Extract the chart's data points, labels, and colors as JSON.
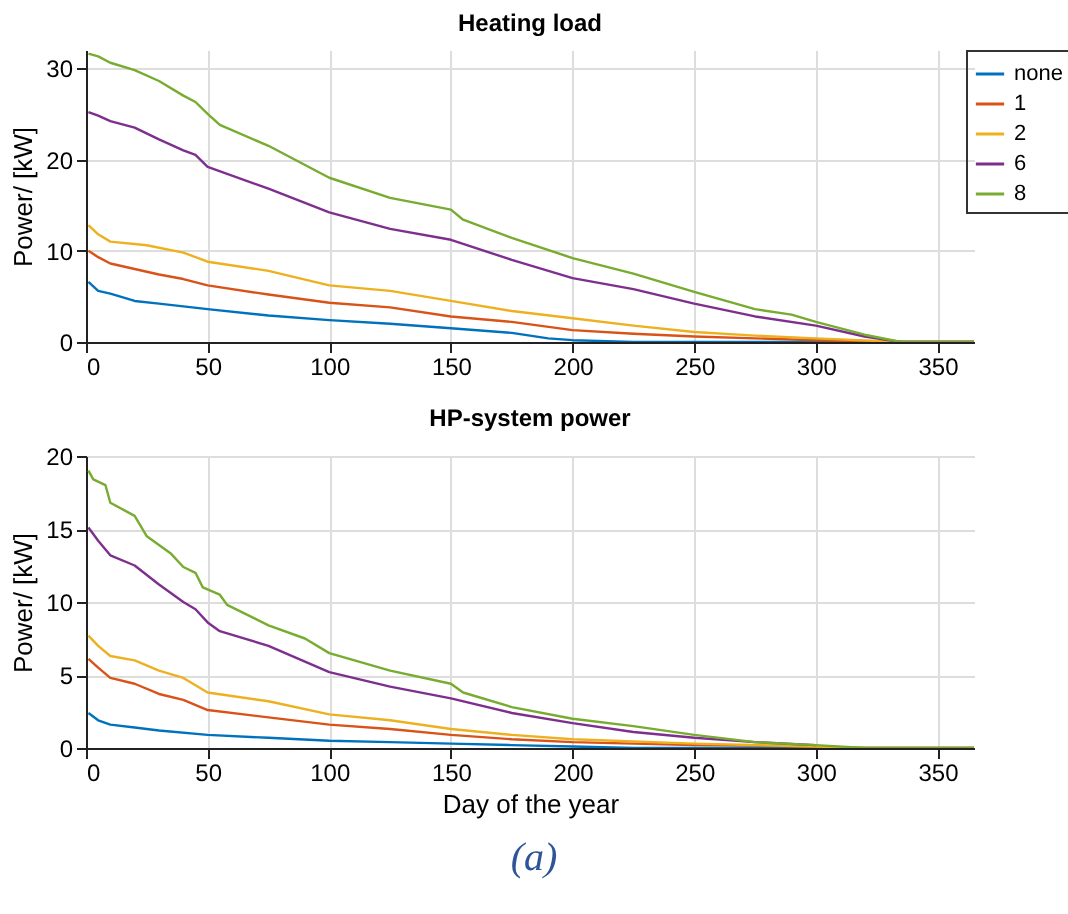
{
  "chart_data": [
    {
      "type": "line",
      "title": "Heating load",
      "ylabel": "Power/ [kW]",
      "xlim": [
        0,
        365
      ],
      "xticks": [
        0,
        50,
        100,
        150,
        200,
        250,
        300,
        350
      ],
      "ylim": [
        0,
        32
      ],
      "yticks": [
        0,
        10,
        20,
        30
      ],
      "grid": true,
      "legend": "right",
      "series": [
        {
          "name": "none",
          "color": "#0072bd",
          "x": [
            1,
            5,
            10,
            20,
            30,
            50,
            75,
            100,
            125,
            150,
            175,
            190,
            200,
            225,
            365
          ],
          "values": [
            6.6,
            5.6,
            5.3,
            4.5,
            4.2,
            3.6,
            2.9,
            2.4,
            2,
            1.5,
            1,
            0.4,
            0.2,
            0,
            0
          ]
        },
        {
          "name": "1",
          "color": "#d95319",
          "x": [
            1,
            5,
            10,
            20,
            30,
            40,
            50,
            75,
            100,
            125,
            150,
            175,
            200,
            225,
            250,
            275,
            300,
            335,
            365
          ],
          "values": [
            10,
            9.3,
            8.6,
            8,
            7.4,
            6.9,
            6.2,
            5.2,
            4.3,
            3.8,
            2.8,
            2.2,
            1.3,
            0.9,
            0.6,
            0.4,
            0.2,
            0,
            0
          ]
        },
        {
          "name": "2",
          "color": "#edb120",
          "x": [
            1,
            5,
            10,
            25,
            40,
            50,
            75,
            100,
            125,
            150,
            175,
            200,
            225,
            250,
            275,
            300,
            335,
            365
          ],
          "values": [
            12.8,
            11.8,
            11,
            10.6,
            9.8,
            8.8,
            7.8,
            6.2,
            5.6,
            4.5,
            3.4,
            2.6,
            1.8,
            1.1,
            0.7,
            0.4,
            0,
            0
          ]
        },
        {
          "name": "6",
          "color": "#7e2f8e",
          "x": [
            1,
            5,
            10,
            20,
            30,
            40,
            45,
            50,
            75,
            100,
            125,
            150,
            175,
            200,
            225,
            250,
            275,
            300,
            320,
            335,
            365
          ],
          "values": [
            25.2,
            24.8,
            24.2,
            23.5,
            22.2,
            21,
            20.5,
            19.2,
            16.8,
            14.2,
            12.4,
            11.2,
            9,
            7,
            5.8,
            4.2,
            2.8,
            1.8,
            0.6,
            0,
            0
          ]
        },
        {
          "name": "8",
          "color": "#77ac30",
          "x": [
            1,
            5,
            10,
            20,
            30,
            40,
            45,
            50,
            55,
            75,
            100,
            125,
            150,
            155,
            175,
            200,
            225,
            250,
            275,
            290,
            300,
            320,
            335,
            365
          ],
          "values": [
            31.6,
            31.3,
            30.6,
            29.8,
            28.6,
            27,
            26.3,
            25,
            23.8,
            21.5,
            18,
            15.8,
            14.5,
            13.4,
            11.4,
            9.2,
            7.5,
            5.5,
            3.6,
            3,
            2.2,
            0.8,
            0,
            0
          ]
        }
      ]
    },
    {
      "type": "line",
      "title": "HP-system power",
      "xlabel": "Day of the year",
      "ylabel": "Power/ [kW]",
      "xlim": [
        0,
        365
      ],
      "xticks": [
        0,
        50,
        100,
        150,
        200,
        250,
        300,
        350
      ],
      "ylim": [
        0,
        20
      ],
      "yticks": [
        0,
        5,
        10,
        15,
        20
      ],
      "grid": true,
      "annotations": [
        "(a)"
      ],
      "series": [
        {
          "color": "#0072bd",
          "x": [
            1,
            5,
            10,
            20,
            30,
            50,
            75,
            100,
            125,
            150,
            175,
            200,
            225,
            365
          ],
          "values": [
            2.4,
            1.9,
            1.6,
            1.4,
            1.2,
            0.9,
            0.7,
            0.5,
            0.4,
            0.3,
            0.2,
            0.1,
            0,
            0
          ]
        },
        {
          "color": "#d95319",
          "x": [
            1,
            5,
            10,
            20,
            30,
            40,
            50,
            75,
            100,
            125,
            150,
            175,
            200,
            250,
            300,
            320,
            365
          ],
          "values": [
            6.1,
            5.5,
            4.8,
            4.4,
            3.7,
            3.3,
            2.6,
            2.1,
            1.6,
            1.3,
            0.9,
            0.6,
            0.4,
            0.2,
            0.1,
            0,
            0
          ]
        },
        {
          "color": "#edb120",
          "x": [
            1,
            5,
            10,
            20,
            30,
            40,
            50,
            75,
            100,
            125,
            150,
            175,
            200,
            250,
            300,
            320,
            365
          ],
          "values": [
            7.7,
            7,
            6.3,
            6,
            5.3,
            4.8,
            3.8,
            3.2,
            2.3,
            1.9,
            1.3,
            0.9,
            0.6,
            0.3,
            0.1,
            0,
            0
          ]
        },
        {
          "color": "#7e2f8e",
          "x": [
            1,
            5,
            10,
            20,
            30,
            40,
            45,
            50,
            55,
            75,
            100,
            125,
            150,
            175,
            200,
            225,
            250,
            275,
            300
          ],
          "values": [
            15.1,
            14.2,
            13.2,
            12.5,
            11.2,
            10,
            9.5,
            8.6,
            8,
            7,
            5.2,
            4.2,
            3.4,
            2.4,
            1.7,
            1.1,
            0.7,
            0.4,
            0.2
          ]
        },
        {
          "color": "#77ac30",
          "x": [
            1,
            3,
            8,
            10,
            20,
            25,
            35,
            40,
            45,
            48,
            55,
            58,
            75,
            90,
            100,
            125,
            150,
            155,
            175,
            200,
            225,
            250,
            275,
            300,
            320,
            365
          ],
          "values": [
            19,
            18.4,
            18,
            16.8,
            15.9,
            14.5,
            13.3,
            12.4,
            12,
            11,
            10.5,
            9.8,
            8.4,
            7.5,
            6.5,
            5.3,
            4.4,
            3.8,
            2.8,
            2,
            1.5,
            0.9,
            0.4,
            0.2,
            0,
            0
          ]
        }
      ]
    }
  ]
}
